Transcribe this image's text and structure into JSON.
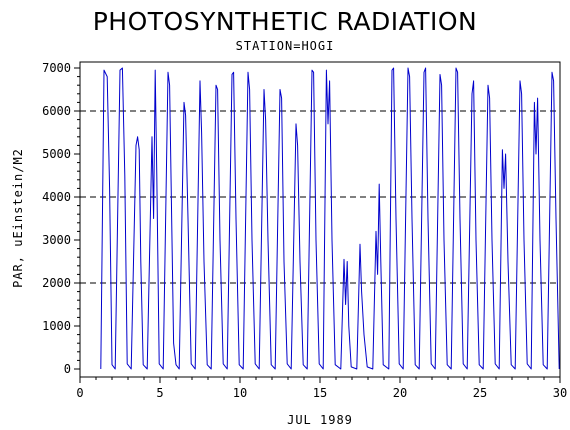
{
  "chart_data": {
    "type": "line",
    "title": "PHOTOSYNTHETIC RADIATION",
    "subtitle": "STATION=HOGI",
    "xlabel": "JUL 1989",
    "ylabel": "PAR, uEinstein/M2",
    "xlim": [
      0,
      30
    ],
    "ylim": [
      0,
      7000
    ],
    "x_ticks": [
      "0",
      "5",
      "10",
      "15",
      "20",
      "25",
      "30"
    ],
    "y_ticks": [
      "0",
      "1000",
      "2000",
      "3000",
      "4000",
      "5000",
      "6000",
      "7000"
    ],
    "reference_lines_y": [
      2000,
      4000,
      6000
    ],
    "reference_line_style": "dashed",
    "series": [
      {
        "color": "#0000cc",
        "values": [
          [
            1.3,
            0
          ],
          [
            1.5,
            6950
          ],
          [
            1.7,
            6800
          ],
          [
            1.85,
            4200
          ],
          [
            2.0,
            100
          ],
          [
            2.2,
            0
          ],
          [
            2.5,
            6950
          ],
          [
            2.65,
            7000
          ],
          [
            2.8,
            4500
          ],
          [
            2.95,
            120
          ],
          [
            3.2,
            0
          ],
          [
            3.5,
            5200
          ],
          [
            3.6,
            5400
          ],
          [
            3.7,
            5100
          ],
          [
            3.8,
            2500
          ],
          [
            3.95,
            100
          ],
          [
            4.2,
            0
          ],
          [
            4.5,
            5400
          ],
          [
            4.6,
            3500
          ],
          [
            4.7,
            6950
          ],
          [
            4.8,
            4500
          ],
          [
            4.95,
            120
          ],
          [
            5.2,
            0
          ],
          [
            5.5,
            6900
          ],
          [
            5.6,
            6600
          ],
          [
            5.75,
            3000
          ],
          [
            5.85,
            600
          ],
          [
            6.0,
            100
          ],
          [
            6.2,
            0
          ],
          [
            6.5,
            6200
          ],
          [
            6.6,
            5900
          ],
          [
            6.75,
            3500
          ],
          [
            6.95,
            120
          ],
          [
            7.2,
            0
          ],
          [
            7.5,
            6700
          ],
          [
            7.6,
            5500
          ],
          [
            7.75,
            2500
          ],
          [
            7.95,
            100
          ],
          [
            8.2,
            0
          ],
          [
            8.5,
            6600
          ],
          [
            8.6,
            6500
          ],
          [
            8.75,
            3000
          ],
          [
            8.95,
            120
          ],
          [
            9.2,
            0
          ],
          [
            9.5,
            6850
          ],
          [
            9.6,
            6900
          ],
          [
            9.75,
            3500
          ],
          [
            9.95,
            100
          ],
          [
            10.2,
            0
          ],
          [
            10.5,
            6900
          ],
          [
            10.6,
            6500
          ],
          [
            10.75,
            3000
          ],
          [
            10.95,
            120
          ],
          [
            11.2,
            0
          ],
          [
            11.5,
            6500
          ],
          [
            11.6,
            5800
          ],
          [
            11.75,
            3000
          ],
          [
            11.95,
            100
          ],
          [
            12.2,
            0
          ],
          [
            12.5,
            6500
          ],
          [
            12.6,
            6300
          ],
          [
            12.75,
            2500
          ],
          [
            12.95,
            120
          ],
          [
            13.2,
            0
          ],
          [
            13.5,
            5700
          ],
          [
            13.6,
            5200
          ],
          [
            13.75,
            2500
          ],
          [
            13.95,
            100
          ],
          [
            14.2,
            0
          ],
          [
            14.5,
            6950
          ],
          [
            14.6,
            6900
          ],
          [
            14.75,
            3000
          ],
          [
            14.95,
            120
          ],
          [
            15.2,
            0
          ],
          [
            15.4,
            6950
          ],
          [
            15.5,
            5700
          ],
          [
            15.6,
            6700
          ],
          [
            15.75,
            3000
          ],
          [
            15.95,
            100
          ],
          [
            16.3,
            0
          ],
          [
            16.5,
            2550
          ],
          [
            16.6,
            1500
          ],
          [
            16.7,
            2500
          ],
          [
            16.8,
            1000
          ],
          [
            16.95,
            50
          ],
          [
            17.3,
            0
          ],
          [
            17.5,
            2900
          ],
          [
            17.6,
            1800
          ],
          [
            17.75,
            800
          ],
          [
            17.95,
            50
          ],
          [
            18.3,
            0
          ],
          [
            18.5,
            3200
          ],
          [
            18.6,
            2200
          ],
          [
            18.7,
            4300
          ],
          [
            18.8,
            2500
          ],
          [
            18.95,
            100
          ],
          [
            19.3,
            0
          ],
          [
            19.5,
            6950
          ],
          [
            19.6,
            7000
          ],
          [
            19.75,
            3500
          ],
          [
            19.95,
            120
          ],
          [
            20.2,
            0
          ],
          [
            20.5,
            7000
          ],
          [
            20.6,
            6800
          ],
          [
            20.75,
            3500
          ],
          [
            20.95,
            100
          ],
          [
            21.2,
            0
          ],
          [
            21.5,
            6900
          ],
          [
            21.6,
            7000
          ],
          [
            21.75,
            3500
          ],
          [
            21.95,
            120
          ],
          [
            22.2,
            0
          ],
          [
            22.5,
            6850
          ],
          [
            22.6,
            6600
          ],
          [
            22.75,
            3000
          ],
          [
            22.95,
            100
          ],
          [
            23.2,
            0
          ],
          [
            23.5,
            7000
          ],
          [
            23.6,
            6900
          ],
          [
            23.75,
            3500
          ],
          [
            23.95,
            120
          ],
          [
            24.2,
            0
          ],
          [
            24.5,
            6400
          ],
          [
            24.6,
            6700
          ],
          [
            24.75,
            3000
          ],
          [
            24.95,
            100
          ],
          [
            25.2,
            0
          ],
          [
            25.5,
            6600
          ],
          [
            25.6,
            6300
          ],
          [
            25.75,
            3000
          ],
          [
            25.95,
            120
          ],
          [
            26.2,
            0
          ],
          [
            26.4,
            5100
          ],
          [
            26.5,
            4200
          ],
          [
            26.6,
            5000
          ],
          [
            26.75,
            2500
          ],
          [
            26.95,
            100
          ],
          [
            27.2,
            0
          ],
          [
            27.5,
            6700
          ],
          [
            27.6,
            6400
          ],
          [
            27.75,
            3000
          ],
          [
            27.95,
            120
          ],
          [
            28.2,
            0
          ],
          [
            28.4,
            6200
          ],
          [
            28.5,
            5000
          ],
          [
            28.6,
            6300
          ],
          [
            28.75,
            3000
          ],
          [
            28.95,
            100
          ],
          [
            29.2,
            0
          ],
          [
            29.5,
            6900
          ],
          [
            29.6,
            6700
          ],
          [
            29.75,
            3500
          ],
          [
            29.95,
            0
          ]
        ]
      }
    ],
    "grid": false,
    "legend": "none"
  }
}
